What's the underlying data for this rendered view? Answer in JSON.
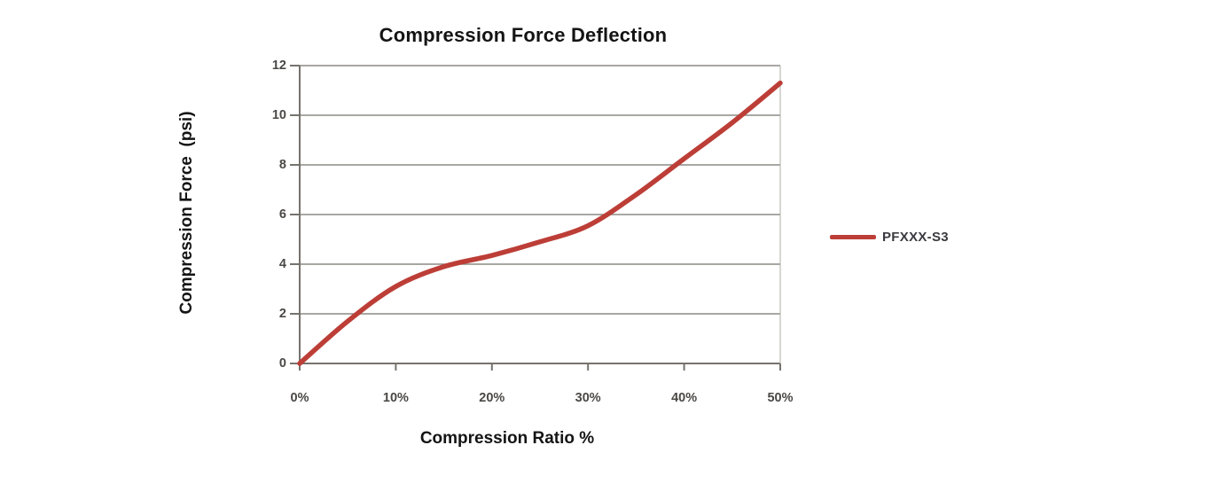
{
  "chart_data": {
    "type": "line",
    "title": "Compression Force Deflection",
    "xlabel": "Compression Ratio %",
    "ylabel": "Compression Force  (psi)",
    "xlim": [
      0,
      50
    ],
    "ylim": [
      0,
      12
    ],
    "x": [
      0,
      5,
      10,
      15,
      20,
      25,
      30,
      35,
      40,
      45,
      50
    ],
    "series": [
      {
        "name": "PFXXX-S3",
        "color": "#BC3E37",
        "values": [
          0,
          1.7,
          3.1,
          3.9,
          4.35,
          4.9,
          5.55,
          6.8,
          8.25,
          9.7,
          11.3
        ]
      }
    ],
    "x_tick_values": [
      0,
      10,
      20,
      30,
      40,
      50
    ],
    "x_ticks": [
      "0%",
      "10%",
      "20%",
      "30%",
      "40%",
      "50%"
    ],
    "y_tick_values": [
      0,
      2,
      4,
      6,
      8,
      10,
      12
    ],
    "y_ticks": [
      "0",
      "2",
      "4",
      "6",
      "8",
      "10",
      "12"
    ],
    "grid": "horizontal",
    "legend_position": "right",
    "colors": {
      "background": "#FFFFFF",
      "grid": "#8C8A83",
      "axis": "#75736D",
      "plot_border_right": "#AFADA6",
      "tick_text": "#4A4845",
      "title_text": "#141414"
    }
  }
}
